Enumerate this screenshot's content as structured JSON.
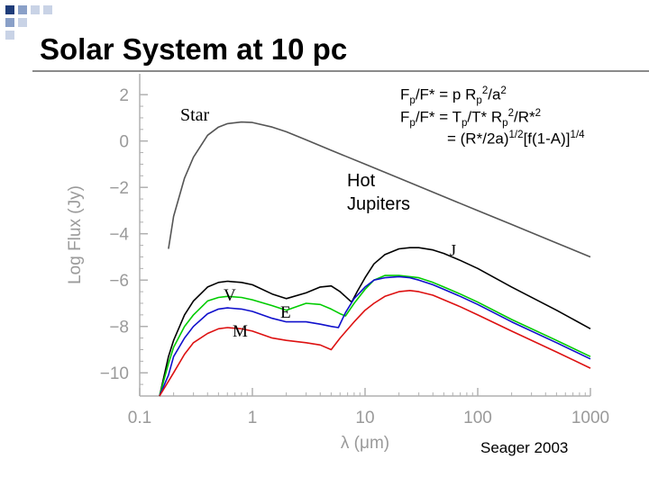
{
  "slide": {
    "title": "Solar System at 10 pc",
    "citation": "Seager 2003"
  },
  "colors": {
    "accent_squares": [
      "#1f3d7a",
      "#8aa0c8",
      "#c9d3e6"
    ],
    "rule": "#8a8a8a"
  },
  "annotations": {
    "star": "Star",
    "hot_jupiters_line1": "Hot",
    "hot_jupiters_line2": "Jupiters",
    "jupiter": "J",
    "venus": "V",
    "earth": "E",
    "mars": "M"
  },
  "equations": {
    "eq1": {
      "a": "F",
      "b": "p",
      "c": "/F",
      "d": "*",
      "e": " = p R",
      "f": "p",
      "g": "2",
      "h": "/a",
      "i": "2"
    },
    "eq2": {
      "a": "F",
      "b": "p",
      "c": "/F",
      "d": "*",
      "e": " = T",
      "f": "p",
      "g": "/T",
      "h": "*",
      "i": " R",
      "j": "p",
      "k": "2",
      "l": "/R",
      "m": "*",
      "n": "2"
    },
    "eq3": {
      "a": "= (R",
      "b": "*",
      "c": "/2a)",
      "d": "1/2",
      "e": "[f(1-A)]",
      "f": "1/4"
    }
  },
  "chart_data": {
    "type": "line",
    "xlabel": "λ (μm)",
    "ylabel": "Log Flux (Jy)",
    "xscale": "log",
    "xlim": [
      0.1,
      1000
    ],
    "ylim": [
      -11,
      2.9
    ],
    "xticks": [
      0.1,
      1,
      10,
      100,
      1000
    ],
    "xtick_labels": [
      "0.1",
      "1",
      "10",
      "100",
      "1000"
    ],
    "yticks": [
      2,
      0,
      -2,
      -4,
      -6,
      -8,
      -10
    ],
    "ytick_labels": [
      "2",
      "0",
      "−2",
      "−4",
      "−6",
      "−8",
      "−10"
    ],
    "grid": false,
    "series": [
      {
        "name": "Star",
        "color": "#555555",
        "x": [
          0.18,
          0.2,
          0.25,
          0.3,
          0.4,
          0.5,
          0.6,
          0.8,
          1,
          1.5,
          2,
          3,
          5,
          10,
          20,
          50,
          100,
          200,
          500,
          1000
        ],
        "y": [
          -4.65,
          -3.25,
          -1.6,
          -0.7,
          0.25,
          0.6,
          0.75,
          0.82,
          0.8,
          0.6,
          0.4,
          0.05,
          -0.4,
          -1.0,
          -1.6,
          -2.4,
          -3.0,
          -3.6,
          -4.4,
          -5.0
        ]
      },
      {
        "name": "J",
        "color": "#000000",
        "x": [
          0.15,
          0.18,
          0.2,
          0.25,
          0.3,
          0.4,
          0.5,
          0.6,
          0.8,
          1,
          1.5,
          2,
          3,
          4,
          5,
          6,
          7.6,
          8.5,
          10,
          12,
          15,
          20,
          25,
          30,
          40,
          50,
          70,
          100,
          200,
          500,
          1000
        ],
        "y": [
          -11.0,
          -9.3,
          -8.6,
          -7.5,
          -6.9,
          -6.3,
          -6.1,
          -6.05,
          -6.1,
          -6.2,
          -6.6,
          -6.8,
          -6.55,
          -6.3,
          -6.25,
          -6.5,
          -6.95,
          -6.5,
          -5.9,
          -5.3,
          -4.9,
          -4.65,
          -4.6,
          -4.6,
          -4.7,
          -4.85,
          -5.15,
          -5.5,
          -6.3,
          -7.3,
          -8.1
        ]
      },
      {
        "name": "V",
        "color": "#00cc00",
        "x": [
          0.15,
          0.18,
          0.2,
          0.25,
          0.3,
          0.4,
          0.5,
          0.6,
          0.8,
          1,
          1.5,
          2,
          3,
          4,
          5,
          6,
          6.7,
          8,
          10,
          12,
          15,
          20,
          25,
          30,
          40,
          50,
          70,
          100,
          200,
          500,
          1000
        ],
        "y": [
          -11.0,
          -9.6,
          -8.9,
          -8.0,
          -7.5,
          -6.9,
          -6.75,
          -6.7,
          -6.75,
          -6.85,
          -7.1,
          -7.3,
          -7.0,
          -7.05,
          -7.25,
          -7.45,
          -7.55,
          -7.0,
          -6.4,
          -6.0,
          -5.8,
          -5.8,
          -5.85,
          -5.9,
          -6.1,
          -6.3,
          -6.6,
          -6.95,
          -7.7,
          -8.6,
          -9.3
        ]
      },
      {
        "name": "E",
        "color": "#1010cc",
        "x": [
          0.15,
          0.18,
          0.2,
          0.25,
          0.3,
          0.4,
          0.5,
          0.6,
          0.8,
          1,
          1.5,
          2,
          3,
          4,
          5,
          5.8,
          6.7,
          8,
          10,
          12,
          15,
          20,
          25,
          30,
          40,
          50,
          70,
          100,
          200,
          500,
          1000
        ],
        "y": [
          -11.0,
          -10.1,
          -9.3,
          -8.5,
          -8.0,
          -7.45,
          -7.25,
          -7.2,
          -7.25,
          -7.35,
          -7.65,
          -7.8,
          -7.8,
          -7.9,
          -8.0,
          -8.05,
          -7.4,
          -6.8,
          -6.3,
          -6.0,
          -5.9,
          -5.85,
          -5.9,
          -6.0,
          -6.2,
          -6.4,
          -6.7,
          -7.05,
          -7.8,
          -8.7,
          -9.4
        ]
      },
      {
        "name": "M",
        "color": "#dd1111",
        "x": [
          0.15,
          0.2,
          0.25,
          0.3,
          0.4,
          0.5,
          0.6,
          0.8,
          1,
          1.5,
          2,
          3,
          4,
          5,
          6,
          8,
          10,
          12,
          15,
          20,
          25,
          30,
          40,
          50,
          70,
          100,
          200,
          500,
          1000
        ],
        "y": [
          -11.0,
          -10.0,
          -9.2,
          -8.7,
          -8.3,
          -8.1,
          -8.05,
          -8.1,
          -8.2,
          -8.5,
          -8.6,
          -8.7,
          -8.8,
          -9.0,
          -8.5,
          -7.8,
          -7.3,
          -7.0,
          -6.7,
          -6.5,
          -6.45,
          -6.5,
          -6.65,
          -6.85,
          -7.15,
          -7.5,
          -8.2,
          -9.1,
          -9.8
        ]
      }
    ]
  }
}
